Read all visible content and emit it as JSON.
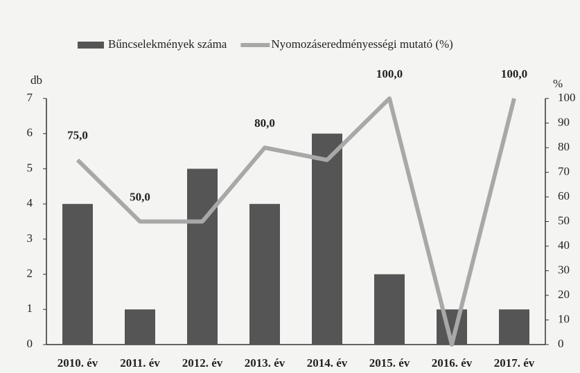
{
  "chart_data": {
    "type": "bar",
    "categories": [
      "2010. év",
      "2011. év",
      "2012. év",
      "2013. év",
      "2014. év",
      "2015. év",
      "2016. év",
      "2017. év"
    ],
    "series": [
      {
        "name": "Bűncselekmények száma",
        "type": "bar",
        "color": "#555555",
        "values": [
          4,
          1,
          5,
          4,
          6,
          2,
          1,
          1
        ]
      },
      {
        "name": "Nyomozáseredményességi mutató (%)",
        "type": "line",
        "axis": "y2",
        "color": "#a8a8a8",
        "values": [
          75,
          50,
          50,
          80,
          75,
          100,
          0,
          100
        ],
        "value_labels": [
          "75,0",
          "50,0",
          null,
          "80,0",
          null,
          "100,0",
          null,
          "100,0"
        ]
      }
    ],
    "ylabel": "db",
    "y2label": "%",
    "ylim": [
      0,
      7
    ],
    "yticks": [
      0,
      1,
      2,
      3,
      4,
      5,
      6,
      7
    ],
    "y2lim": [
      0,
      100
    ],
    "y2ticks": [
      0,
      10,
      20,
      30,
      40,
      50,
      60,
      70,
      80,
      90,
      100
    ],
    "legend": "top"
  }
}
